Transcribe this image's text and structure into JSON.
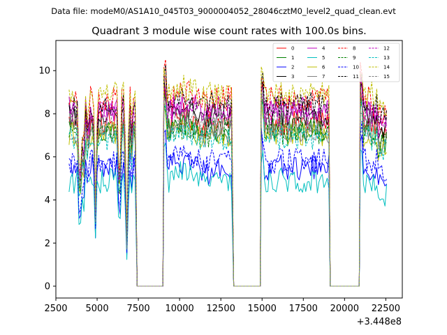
{
  "chart_data": {
    "type": "line",
    "suptitle": "Data file: modeM0/AS1A10_045T03_9000004052_28046cztM0_level2_quad_clean.evt",
    "title": "Quadrant 3 module wise count rates with 100.0s bins.",
    "xlabel": "",
    "ylabel": "",
    "x_offset_label": "+3.448e8",
    "xlim": [
      2500,
      23500
    ],
    "ylim": [
      -0.55,
      11.4
    ],
    "x_ticks": [
      2500,
      5000,
      7500,
      10000,
      12500,
      15000,
      17500,
      20000,
      22500
    ],
    "x_tick_labels": [
      "2500",
      "5000",
      "7500",
      "10000",
      "12500",
      "15000",
      "17500",
      "20000",
      "22500"
    ],
    "y_ticks": [
      0,
      2,
      4,
      6,
      8,
      10
    ],
    "y_tick_labels": [
      "0",
      "2",
      "4",
      "6",
      "8",
      "10"
    ],
    "gap_intervals": [
      [
        7350,
        9050
      ],
      [
        13200,
        14950
      ],
      [
        19050,
        20950
      ]
    ],
    "segments": [
      {
        "start": 3300,
        "end": 7350
      },
      {
        "start": 9050,
        "end": 13200
      },
      {
        "start": 14950,
        "end": 19050
      },
      {
        "start": 20950,
        "end": 22600
      }
    ],
    "bin_width": 100,
    "legend_position": "top-right",
    "series": [
      {
        "name": "0",
        "color": "#ff0000",
        "dash": "solid",
        "level": 7.6
      },
      {
        "name": "1",
        "color": "#008000",
        "dash": "solid",
        "level": 7.3
      },
      {
        "name": "2",
        "color": "#0000ff",
        "dash": "solid",
        "level": 5.5
      },
      {
        "name": "3",
        "color": "#000000",
        "dash": "solid",
        "level": 8.0
      },
      {
        "name": "4",
        "color": "#bf00bf",
        "dash": "solid",
        "level": 8.2
      },
      {
        "name": "5",
        "color": "#00bfbf",
        "dash": "solid",
        "level": 4.9
      },
      {
        "name": "6",
        "color": "#bfbf00",
        "dash": "solid",
        "level": 7.0
      },
      {
        "name": "7",
        "color": "#808080",
        "dash": "solid",
        "level": 7.2
      },
      {
        "name": "8",
        "color": "#ff0000",
        "dash": "dashed",
        "level": 8.7
      },
      {
        "name": "9",
        "color": "#008000",
        "dash": "dashed",
        "level": 7.1
      },
      {
        "name": "10",
        "color": "#0000ff",
        "dash": "dashed",
        "level": 5.8
      },
      {
        "name": "11",
        "color": "#000000",
        "dash": "dashed",
        "level": 8.4
      },
      {
        "name": "12",
        "color": "#bf00bf",
        "dash": "dashed",
        "level": 8.0
      },
      {
        "name": "13",
        "color": "#00bfbf",
        "dash": "dashed",
        "level": 6.9
      },
      {
        "name": "14",
        "color": "#bfbf00",
        "dash": "dashed",
        "level": 8.9
      },
      {
        "name": "15",
        "color": "#808080",
        "dash": "dashed",
        "level": 7.5
      }
    ]
  }
}
